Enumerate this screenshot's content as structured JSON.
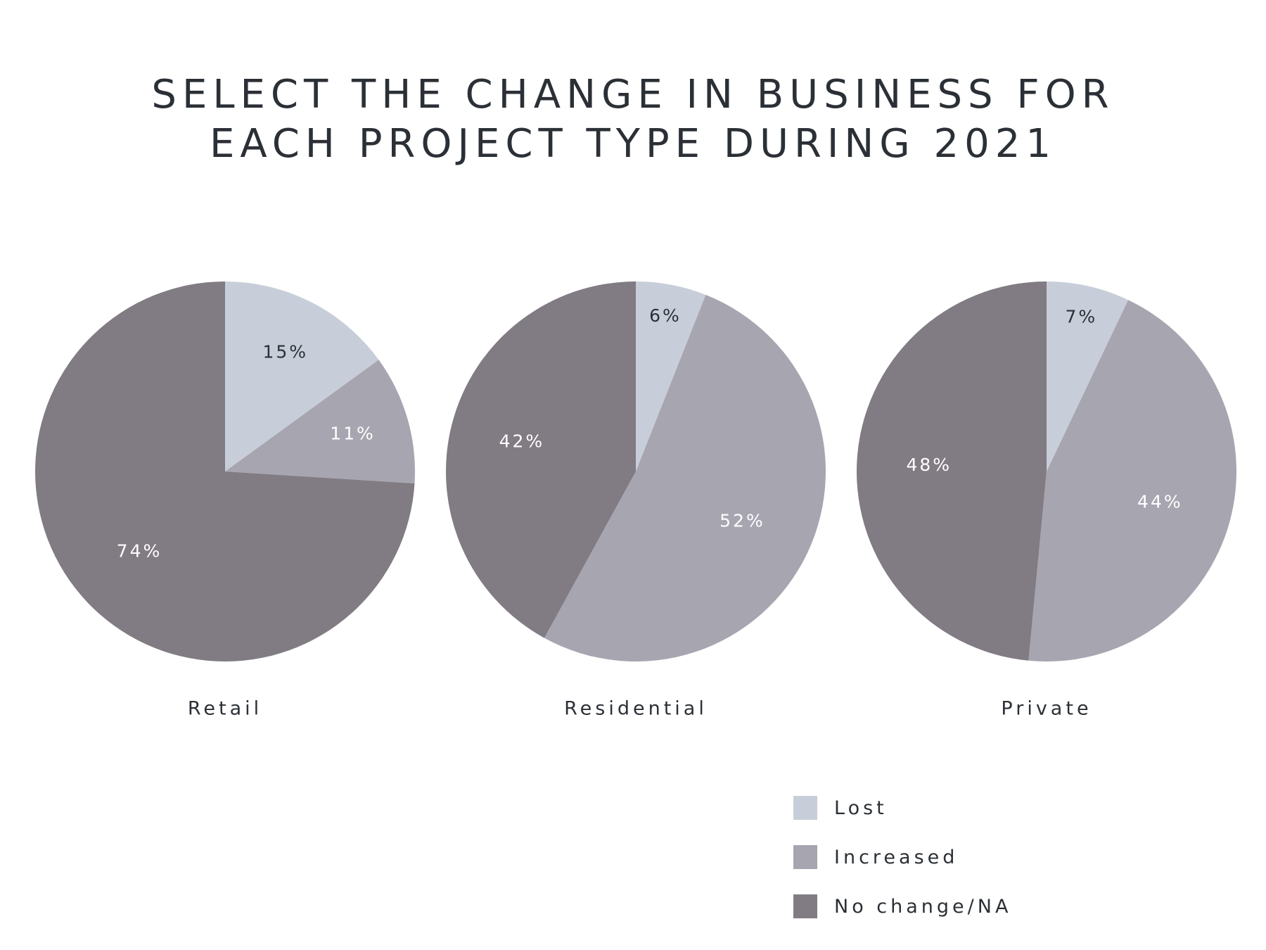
{
  "title": {
    "line1": "SELECT THE CHANGE IN BUSINESS FOR",
    "line2": "EACH PROJECT TYPE DURING 2021"
  },
  "colors": {
    "lost": "#c8ced9",
    "increased": "#a7a5b0",
    "no_change": "#817b83",
    "label_dark": "#2b3036",
    "label_light": "#ffffff"
  },
  "legend": [
    {
      "key": "lost",
      "label": "Lost"
    },
    {
      "key": "increased",
      "label": "Increased"
    },
    {
      "key": "no_change",
      "label": "No change/NA"
    }
  ],
  "chart_data": {
    "type": "pie",
    "title": "SELECT THE CHANGE IN BUSINESS FOR EACH PROJECT TYPE DURING 2021",
    "series": [
      {
        "name": "Lost",
        "values": [
          15,
          6,
          7
        ]
      },
      {
        "name": "Increased",
        "values": [
          11,
          52,
          44
        ]
      },
      {
        "name": "No change/NA",
        "values": [
          74,
          42,
          48
        ]
      }
    ],
    "categories": [
      "Retail",
      "Residential",
      "Private"
    ],
    "pies": [
      {
        "category": "Retail",
        "slices": [
          {
            "label": "Lost",
            "value": 15,
            "text": "15%"
          },
          {
            "label": "Increased",
            "value": 11,
            "text": "11%"
          },
          {
            "label": "No change/NA",
            "value": 74,
            "text": "74%"
          }
        ]
      },
      {
        "category": "Residential",
        "slices": [
          {
            "label": "Lost",
            "value": 6,
            "text": "6%"
          },
          {
            "label": "Increased",
            "value": 52,
            "text": "52%"
          },
          {
            "label": "No change/NA",
            "value": 42,
            "text": "42%"
          }
        ]
      },
      {
        "category": "Private",
        "slices": [
          {
            "label": "Lost",
            "value": 7,
            "text": "7%"
          },
          {
            "label": "Increased",
            "value": 44,
            "text": "44%"
          },
          {
            "label": "No change/NA",
            "value": 48,
            "text": "48%"
          }
        ]
      }
    ],
    "legend_position": "bottom-right"
  }
}
